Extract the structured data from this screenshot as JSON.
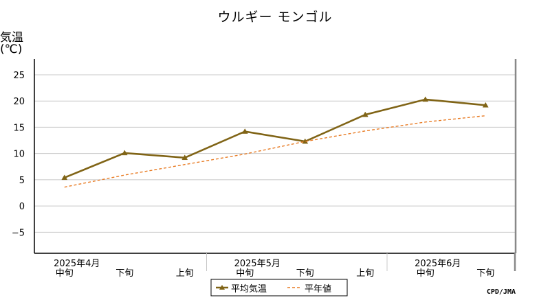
{
  "chart_data": {
    "type": "line",
    "title": "ウルギー モンゴル",
    "ylabel": "気温",
    "yunit": "(℃)",
    "ylim": [
      -9,
      28
    ],
    "yticks": [
      -5,
      0,
      5,
      10,
      15,
      20,
      25
    ],
    "categories": [
      "中旬",
      "下旬",
      "上旬",
      "中旬",
      "下旬",
      "上旬",
      "中旬",
      "下旬"
    ],
    "months": [
      {
        "label": "2025年4月",
        "at": 0
      },
      {
        "label": "2025年5月",
        "at": 3
      },
      {
        "label": "2025年6月",
        "at": 6
      }
    ],
    "series": [
      {
        "name": "平均気温",
        "values": [
          5.4,
          10.1,
          9.2,
          14.2,
          12.3,
          17.4,
          20.3,
          19.2
        ],
        "color": "#806416",
        "style": "solid-marker"
      },
      {
        "name": "平年値",
        "values": [
          3.6,
          5.9,
          7.9,
          9.9,
          12.3,
          14.3,
          16.0,
          17.2
        ],
        "color": "#e87a22",
        "style": "dashed"
      }
    ],
    "grid": true,
    "legend": "bottom-center"
  },
  "credit": "CPD/JMA"
}
